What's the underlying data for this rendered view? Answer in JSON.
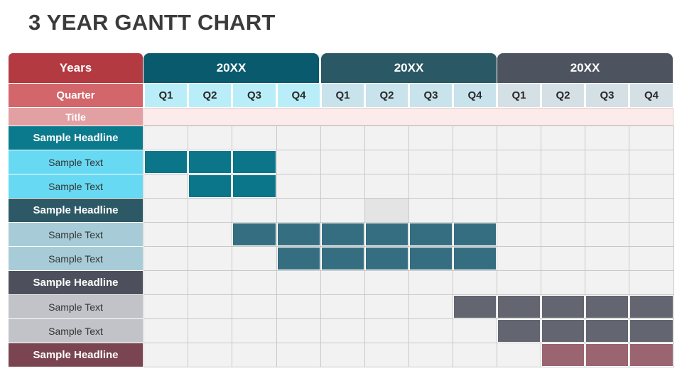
{
  "title": "3 YEAR GANTT CHART",
  "header": {
    "years_label": "Years",
    "quarter_label": "Quarter",
    "title_label": "Title",
    "years": [
      {
        "label": "20XX",
        "color": "#0a5a6e"
      },
      {
        "label": "20XX",
        "color": "#2a5864"
      },
      {
        "label": "20XX",
        "color": "#4e5360"
      }
    ],
    "quarters": [
      "Q1",
      "Q2",
      "Q3",
      "Q4",
      "Q1",
      "Q2",
      "Q3",
      "Q4",
      "Q1",
      "Q2",
      "Q3",
      "Q4"
    ]
  },
  "colors": {
    "years_header": "#b23a40",
    "quarter_header": "#d2666a",
    "title_header": "#e3a0a3",
    "quarter_cells": [
      "#b9eef9",
      "#c8e3ec",
      "#d5e0e6"
    ],
    "title_cells": "#fbeceb",
    "grid_cell": "#f2f2f2",
    "highlight_cell": "#e4e4e4"
  },
  "rows": [
    {
      "label": "Sample Headline",
      "type": "headline",
      "bg": "#0c7a8d",
      "bar_color": null,
      "bars": []
    },
    {
      "label": "Sample Text",
      "type": "text",
      "bg": "#67d9f2",
      "bar_color": "#0b7589",
      "bars": [
        0,
        1,
        2
      ]
    },
    {
      "label": "Sample Text",
      "type": "text",
      "bg": "#67d9f2",
      "bar_color": "#0b7589",
      "bars": [
        1,
        2
      ]
    },
    {
      "label": "Sample Headline",
      "type": "headline",
      "bg": "#2d5966",
      "bar_color": null,
      "bars": [],
      "highlight": [
        5
      ]
    },
    {
      "label": "Sample Text",
      "type": "text",
      "bg": "#a7ccd8",
      "bar_color": "#356e80",
      "bars": [
        2,
        3,
        4,
        5,
        6,
        7
      ]
    },
    {
      "label": "Sample Text",
      "type": "text",
      "bg": "#a7ccd8",
      "bar_color": "#356e80",
      "bars": [
        3,
        4,
        5,
        6,
        7
      ]
    },
    {
      "label": "Sample Headline",
      "type": "headline",
      "bg": "#4d505c",
      "bar_color": null,
      "bars": []
    },
    {
      "label": "Sample Text",
      "type": "text",
      "bg": "#c2c3c8",
      "bar_color": "#636671",
      "bars": [
        7,
        8,
        9,
        10,
        11
      ]
    },
    {
      "label": "Sample Text",
      "type": "text",
      "bg": "#c2c3c8",
      "bar_color": "#636671",
      "bars": [
        8,
        9,
        10,
        11
      ]
    },
    {
      "label": "Sample Headline",
      "type": "headline",
      "bg": "#7a4550",
      "bar_color": "#9a6570",
      "bars": [
        9,
        10,
        11
      ]
    }
  ]
}
